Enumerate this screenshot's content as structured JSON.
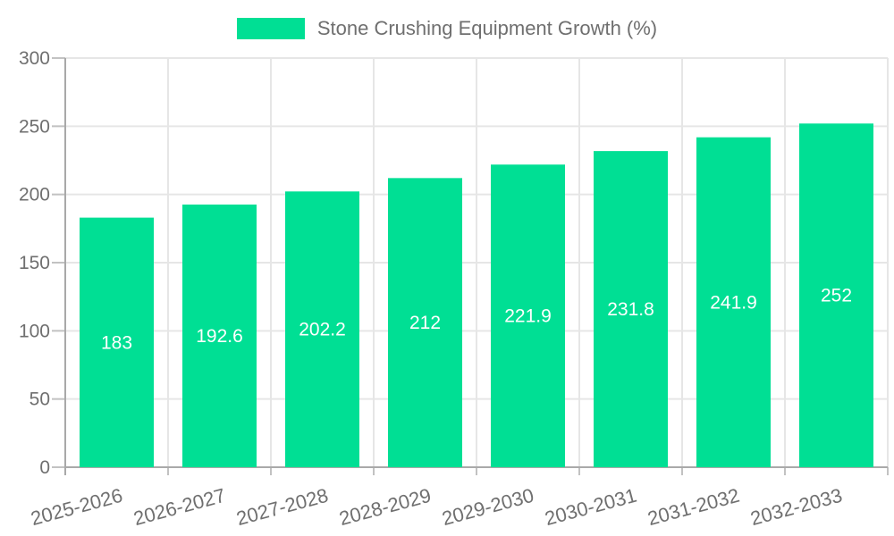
{
  "chart_data": {
    "type": "bar",
    "title": "Stone Crushing Equipment Growth (%)",
    "xlabel": "",
    "ylabel": "",
    "categories": [
      "2025-2026",
      "2026-2027",
      "2027-2028",
      "2028-2029",
      "2029-2030",
      "2030-2031",
      "2031-2032",
      "2032-2033"
    ],
    "values": [
      183,
      192.6,
      202.2,
      212,
      221.9,
      231.8,
      241.9,
      252
    ],
    "value_labels": [
      "183",
      "192.6",
      "202.2",
      "212",
      "221.9",
      "231.8",
      "241.9",
      "252"
    ],
    "ylim": [
      0,
      300
    ],
    "yticks": [
      0,
      50,
      100,
      150,
      200,
      250,
      300
    ],
    "grid": true,
    "legend_position": "top",
    "x_label_rotation_deg": -15
  },
  "colors": {
    "bar": "#00DF94",
    "grid": "#e6e6e6",
    "axis": "#a9a9a9",
    "tick": "#c2c2c2",
    "axis_label": "#6f6f6f",
    "value_label": "#ffffff",
    "background": "#ffffff"
  }
}
